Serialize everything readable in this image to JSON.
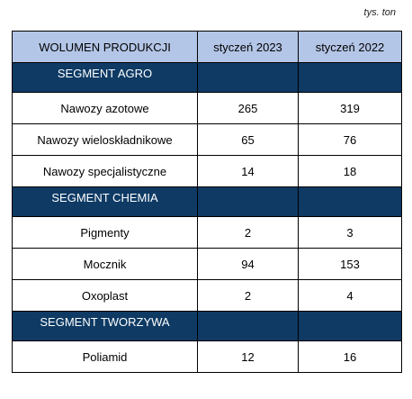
{
  "unit_note": "tys. ton",
  "header": {
    "label": "WOLUMEN PRODUKCJI",
    "col1": "styczeń 2023",
    "col2": "styczeń 2022"
  },
  "segments": [
    {
      "name": "SEGMENT AGRO",
      "rows": [
        {
          "label": "Nawozy azotowe",
          "v2023": "265",
          "v2022": "319"
        },
        {
          "label": "Nawozy wieloskładnikowe",
          "v2023": "65",
          "v2022": "76"
        },
        {
          "label": "Nawozy specjalistyczne",
          "v2023": "14",
          "v2022": "18"
        }
      ]
    },
    {
      "name": "SEGMENT CHEMIA",
      "rows": [
        {
          "label": "Pigmenty",
          "v2023": "2",
          "v2022": "3"
        },
        {
          "label": "Mocznik",
          "v2023": "94",
          "v2022": "153"
        },
        {
          "label": "Oxoplast",
          "v2023": "2",
          "v2022": "4"
        }
      ]
    },
    {
      "name": "SEGMENT TWORZYWA",
      "rows": [
        {
          "label": "Poliamid",
          "v2023": "12",
          "v2022": "16"
        }
      ]
    }
  ]
}
